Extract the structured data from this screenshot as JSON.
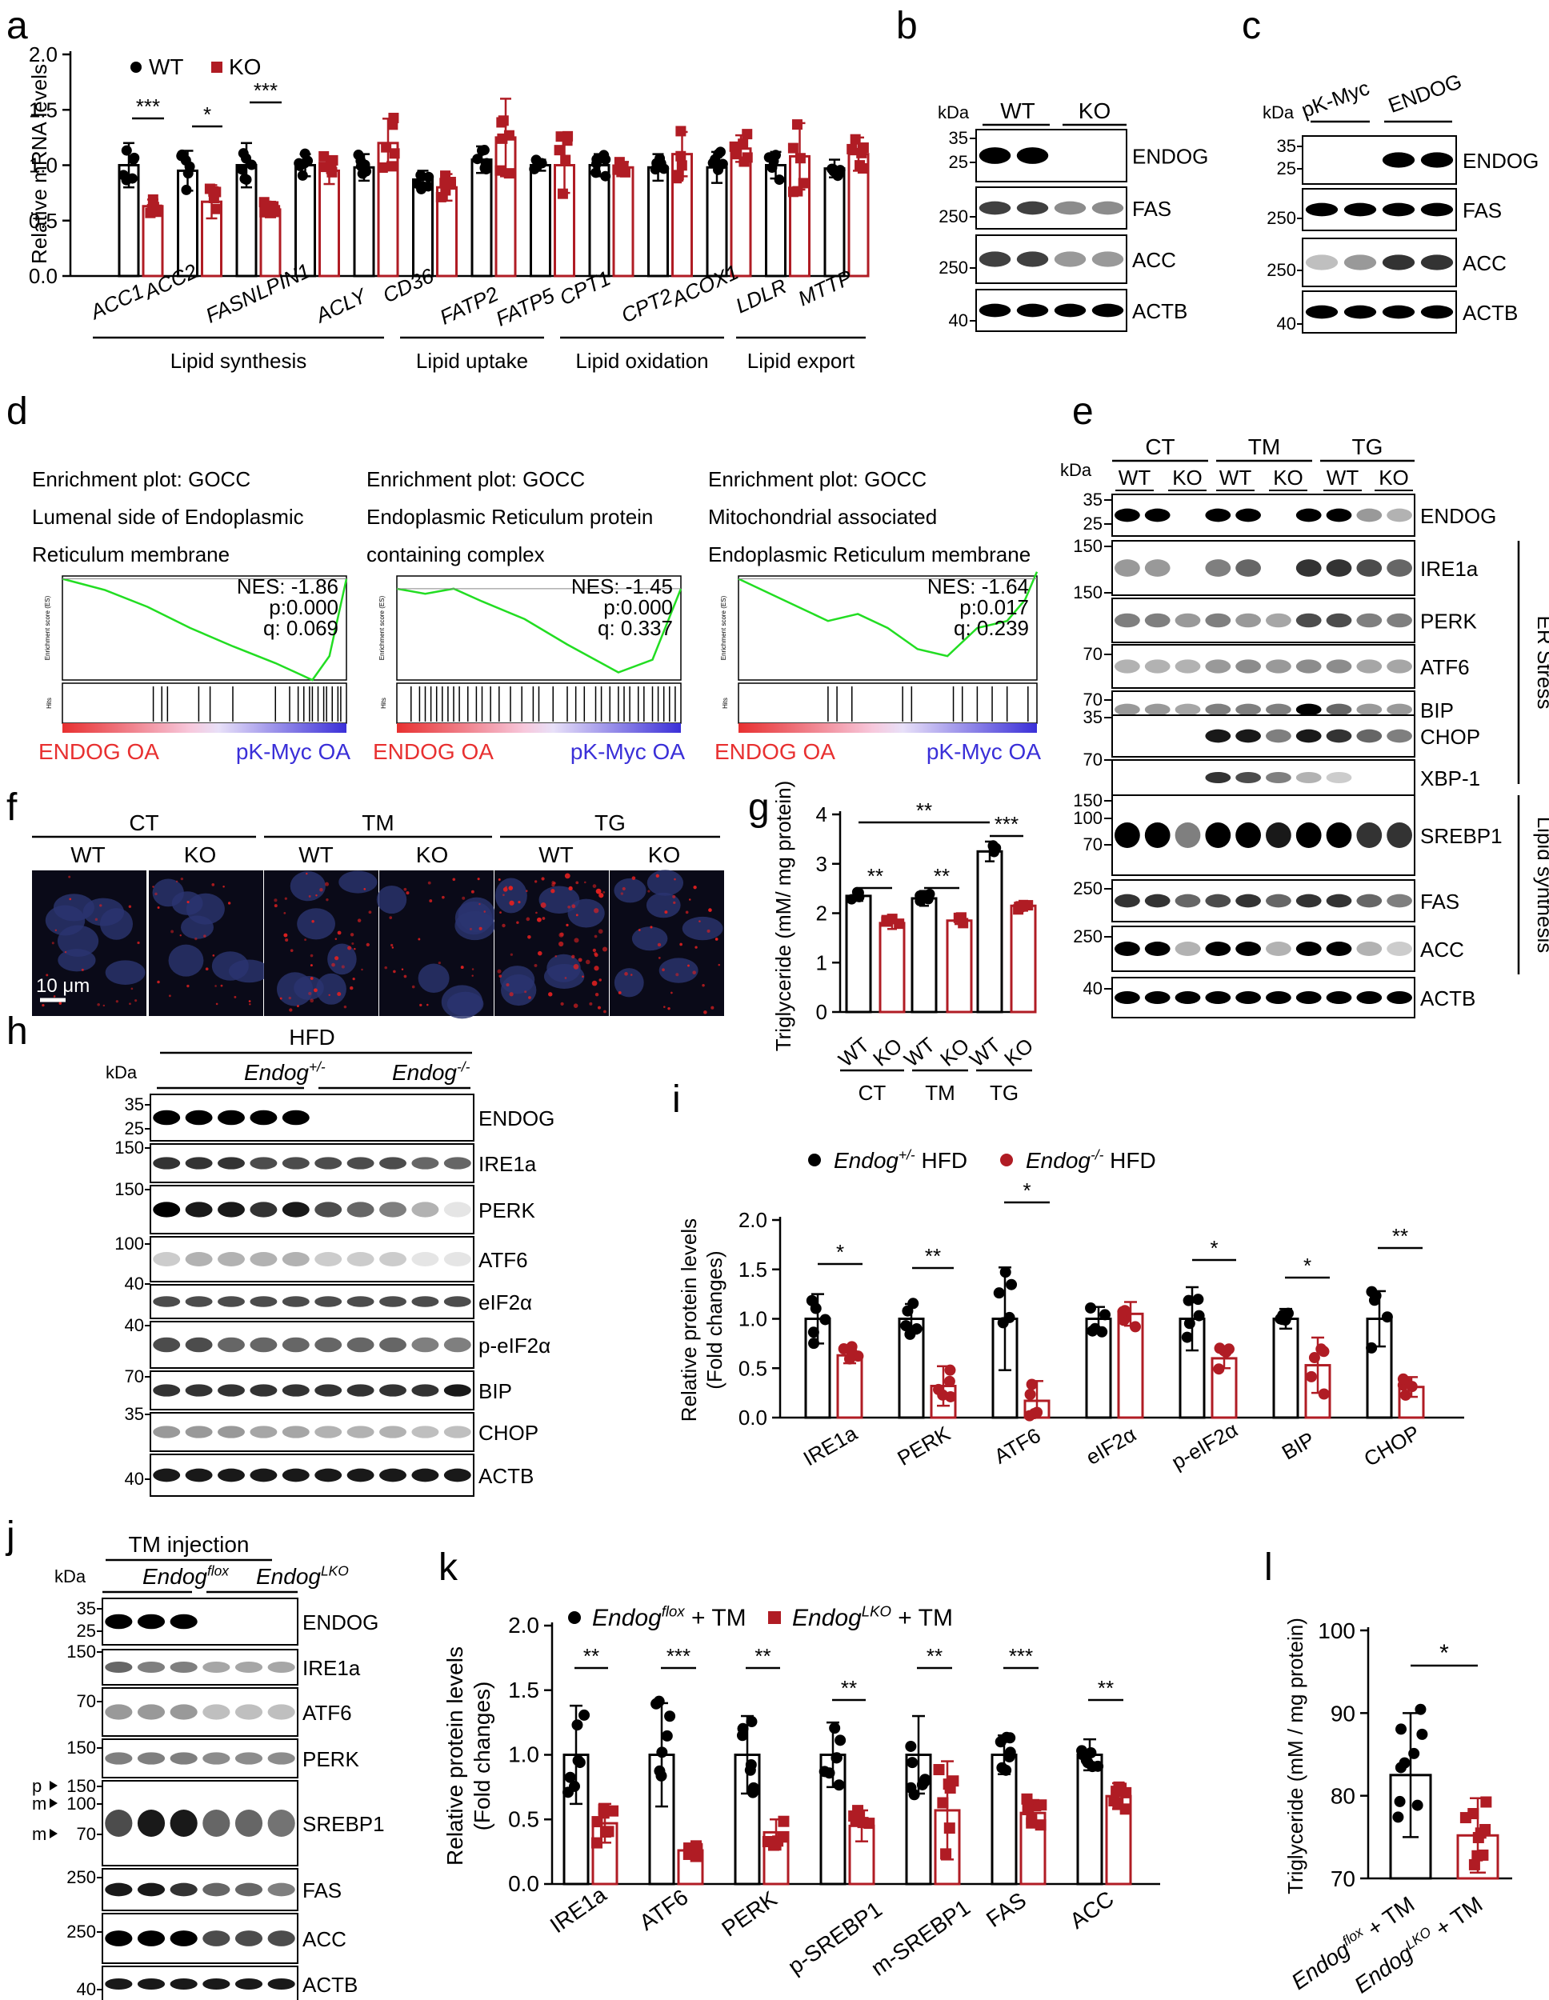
{
  "colors": {
    "wt": "#000000",
    "ko": "#b01c24",
    "gsea_line": "#22dd22",
    "gsea_red": "#e83030",
    "gsea_blue": "#3a2fd8"
  },
  "panel_a": {
    "letter": "a",
    "ylabel": "Relative mRNA levels",
    "yticks": [
      "0.0",
      "0.5",
      "1.0",
      "1.5",
      "2.0"
    ],
    "legend": [
      "WT",
      "KO"
    ],
    "genes": [
      "ACC1",
      "ACC2",
      "FASN",
      "LPIN1",
      "ACLY",
      "CD36",
      "FATP2",
      "FATP5",
      "CPT1",
      "CPT2",
      "ACOX1",
      "LDLR",
      "MTTP"
    ],
    "groups": [
      "Lipid synthesis",
      "Lipid uptake",
      "Lipid oxidation",
      "Lipid export"
    ],
    "sig": [
      "***",
      "*",
      "***"
    ]
  },
  "chart_data": [
    {
      "type": "bar",
      "panel": "a",
      "ylabel": "Relative mRNA levels",
      "ylim": [
        0,
        2
      ],
      "categories": [
        "ACC1",
        "ACC2",
        "FASN",
        "LPIN1",
        "ACLY",
        "CD36",
        "FATP2",
        "FATP5",
        "CPT1",
        "CPT2",
        "ACOX1",
        "LDLR",
        "MTTP"
      ],
      "series": [
        {
          "name": "WT",
          "values": [
            1.0,
            0.95,
            1.0,
            1.0,
            0.98,
            0.87,
            1.05,
            1.0,
            1.0,
            0.98,
            0.98,
            1.0,
            0.97
          ],
          "err": [
            0.2,
            0.18,
            0.2,
            0.1,
            0.12,
            0.08,
            0.12,
            0.05,
            0.1,
            0.12,
            0.14,
            0.12,
            0.08
          ]
        },
        {
          "name": "KO",
          "values": [
            0.63,
            0.67,
            0.6,
            0.95,
            1.2,
            0.8,
            1.25,
            1.0,
            0.98,
            1.1,
            1.15,
            1.08,
            1.1
          ],
          "err": [
            0.06,
            0.15,
            0.07,
            0.12,
            0.22,
            0.12,
            0.35,
            0.25,
            0.05,
            0.2,
            0.12,
            0.3,
            0.15
          ]
        }
      ],
      "significance": [
        "***",
        "*",
        "***"
      ]
    },
    {
      "type": "bar",
      "panel": "g",
      "ylabel": "Triglyceride (mM/ mg protein)",
      "ylim": [
        0,
        4
      ],
      "categories": [
        "CT",
        "TM",
        "TG"
      ],
      "series": [
        {
          "name": "WT",
          "values": [
            2.35,
            2.3,
            3.25
          ],
          "err": [
            0.1,
            0.15,
            0.2
          ]
        },
        {
          "name": "KO",
          "values": [
            1.8,
            1.85,
            2.15
          ],
          "err": [
            0.12,
            0.07,
            0.1
          ]
        }
      ],
      "significance": [
        "**",
        "**",
        "**",
        "***"
      ]
    },
    {
      "type": "bar",
      "panel": "i",
      "ylabel": "Relative protein levels (Fold changes)",
      "ylim": [
        0,
        2
      ],
      "categories": [
        "IRE1a",
        "PERK",
        "ATF6",
        "eIF2α",
        "p-eIF2α",
        "BIP",
        "CHOP"
      ],
      "series": [
        {
          "name": "Endog+/- HFD",
          "values": [
            1.0,
            1.0,
            1.0,
            1.0,
            1.0,
            1.0,
            1.0
          ],
          "err": [
            0.25,
            0.15,
            0.52,
            0.12,
            0.32,
            0.1,
            0.28
          ]
        },
        {
          "name": "Endog-/- HFD",
          "values": [
            0.63,
            0.32,
            0.17,
            1.05,
            0.6,
            0.53,
            0.31
          ],
          "err": [
            0.08,
            0.2,
            0.2,
            0.12,
            0.1,
            0.28,
            0.1
          ]
        }
      ],
      "significance": [
        "*",
        "**",
        "*",
        "*",
        "*",
        "**"
      ]
    },
    {
      "type": "bar",
      "panel": "k",
      "ylabel": "Relative protein levels (Fold changes)",
      "ylim": [
        0,
        2
      ],
      "categories": [
        "IRE1a",
        "ATF6",
        "PERK",
        "p-SREBP1",
        "m-SREBP1",
        "FAS",
        "ACC"
      ],
      "series": [
        {
          "name": "Endogflox + TM",
          "values": [
            1.0,
            1.0,
            1.0,
            1.0,
            1.0,
            1.0,
            1.0
          ],
          "err": [
            0.38,
            0.4,
            0.3,
            0.25,
            0.3,
            0.15,
            0.12
          ]
        },
        {
          "name": "EndogLKO + TM",
          "values": [
            0.47,
            0.26,
            0.4,
            0.45,
            0.57,
            0.55,
            0.68
          ],
          "err": [
            0.15,
            0.05,
            0.1,
            0.12,
            0.38,
            0.1,
            0.1
          ]
        }
      ],
      "significance": [
        "**",
        "***",
        "**",
        "**",
        "**",
        "***",
        "**"
      ]
    },
    {
      "type": "bar",
      "panel": "l",
      "ylabel": "Triglyceride (mM / mg protein)",
      "ylim": [
        70,
        100
      ],
      "categories": [
        "Endogflox + TM",
        "EndogLKO + TM"
      ],
      "series": [
        {
          "name": "Triglyceride",
          "values": [
            82.5,
            75.2
          ],
          "err": [
            7.5,
            4.5
          ]
        }
      ],
      "significance": [
        "*"
      ]
    }
  ],
  "panel_b": {
    "letter": "b",
    "kda": "kDa",
    "groups": [
      "WT",
      "KO"
    ],
    "bands": [
      "ENDOG",
      "FAS",
      "ACC",
      "ACTB"
    ],
    "mw": [
      "35",
      "25",
      "250",
      "250",
      "40"
    ]
  },
  "panel_c": {
    "letter": "c",
    "kda": "kDa",
    "groups": [
      "pK-Myc",
      "ENDOG"
    ],
    "bands": [
      "ENDOG",
      "FAS",
      "ACC",
      "ACTB"
    ],
    "mw": [
      "35",
      "25",
      "250",
      "250",
      "40"
    ]
  },
  "panel_d": {
    "letter": "d",
    "plots": [
      {
        "l1": "Enrichment plot: GOCC",
        "l2": "Lumenal side of Endoplasmic",
        "l3": "Reticulum membrane",
        "nes": "NES: -1.86",
        "p": "p:0.000",
        "q": "q: 0.069",
        "left": "ENDOG OA",
        "right": "pK-Myc OA"
      },
      {
        "l1": "Enrichment plot: GOCC",
        "l2": "Endoplasmic Reticulum protein",
        "l3": "containing complex",
        "nes": "NES: -1.45",
        "p": "p:0.000",
        "q": "q: 0.337",
        "left": "ENDOG OA",
        "right": "pK-Myc OA"
      },
      {
        "l1": "Enrichment plot: GOCC",
        "l2": "Mitochondrial associated",
        "l3": "Endoplasmic Reticulum membrane",
        "nes": "NES: -1.64",
        "p": "p:0.017",
        "q": "q: 0.239",
        "left": "ENDOG OA",
        "right": "pK-Myc OA"
      }
    ],
    "es_label": "Enrichment score (ES)",
    "hits_label": "Hits"
  },
  "panel_e": {
    "letter": "e",
    "kda": "kDa",
    "treatments": [
      "CT",
      "TM",
      "TG"
    ],
    "geno": [
      "WT",
      "KO"
    ],
    "bands": [
      "ENDOG",
      "IRE1a",
      "PERK",
      "ATF6",
      "BIP",
      "CHOP",
      "XBP-1",
      "SREBP1",
      "FAS",
      "ACC",
      "ACTB"
    ],
    "side": [
      "ER Stress",
      "Lipid synthesis"
    ],
    "mw": [
      "35",
      "25",
      "150",
      "150",
      "70",
      "70",
      "35",
      "70",
      "150",
      "100",
      "70",
      "250",
      "250",
      "40"
    ]
  },
  "panel_f": {
    "letter": "f",
    "treatments": [
      "CT",
      "TM",
      "TG"
    ],
    "geno": [
      "WT",
      "KO"
    ],
    "scale": "10 μm"
  },
  "panel_g": {
    "letter": "g",
    "ylabel": "Triglyceride (mM/ mg protein)",
    "yticks": [
      "0",
      "1",
      "2",
      "3",
      "4"
    ],
    "xlabels": [
      "WT",
      "KO",
      "WT",
      "KO",
      "WT",
      "KO"
    ],
    "groups": [
      "CT",
      "TM",
      "TG"
    ]
  },
  "panel_h": {
    "letter": "h",
    "kda": "kDa",
    "title": "HFD",
    "groups": [
      "Endog",
      "+/-",
      "Endog",
      "-/-"
    ],
    "bands": [
      "ENDOG",
      "IRE1a",
      "PERK",
      "ATF6",
      "eIF2α",
      "p-eIF2α",
      "BIP",
      "CHOP",
      "ACTB"
    ],
    "mw": [
      "35",
      "25",
      "150",
      "150",
      "100",
      "40",
      "40",
      "70",
      "35",
      "40"
    ]
  },
  "panel_i": {
    "letter": "i",
    "ylabel1": "Relative protein levels",
    "ylabel2": "(Fold changes)",
    "yticks": [
      "0.0",
      "0.5",
      "1.0",
      "1.5",
      "2.0"
    ],
    "legend": [
      {
        "a": "Endog",
        "sup": "+/-",
        "b": " HFD"
      },
      {
        "a": "Endog",
        "sup": "-/-",
        "b": " HFD"
      }
    ],
    "categories": [
      "IRE1a",
      "PERK",
      "ATF6",
      "eIF2α",
      "p-eIF2α",
      "BIP",
      "CHOP"
    ]
  },
  "panel_j": {
    "letter": "j",
    "kda": "kDa",
    "title": "TM injection",
    "groups": [
      "Endog",
      "flox",
      "Endog",
      "LKO"
    ],
    "bands": [
      "ENDOG",
      "IRE1a",
      "ATF6",
      "PERK",
      "SREBP1",
      "FAS",
      "ACC",
      "ACTB"
    ],
    "mw": [
      "35",
      "25",
      "150",
      "70",
      "150",
      "150",
      "100",
      "70",
      "250",
      "250",
      "40"
    ],
    "arrows": [
      "p",
      "m",
      "m"
    ]
  },
  "panel_k": {
    "letter": "k",
    "ylabel1": "Relative protein levels",
    "ylabel2": "(Fold changes)",
    "yticks": [
      "0.0",
      "0.5",
      "1.0",
      "1.5",
      "2.0"
    ],
    "legend": [
      {
        "a": "Endog",
        "sup": "flox",
        "b": " + TM"
      },
      {
        "a": "Endog",
        "sup": "LKO",
        "b": " + TM"
      }
    ],
    "categories": [
      "IRE1a",
      "ATF6",
      "PERK",
      "p-SREBP1",
      "m-SREBP1",
      "FAS",
      "ACC"
    ]
  },
  "panel_l": {
    "letter": "l",
    "ylabel": "Triglyceride (mM / mg protein)",
    "yticks": [
      "70",
      "80",
      "90",
      "100"
    ],
    "xlabels": [
      {
        "a": "Endog",
        "sup": "flox",
        "b": " + TM"
      },
      {
        "a": "Endog",
        "sup": "LKO",
        "b": " + TM"
      }
    ]
  }
}
